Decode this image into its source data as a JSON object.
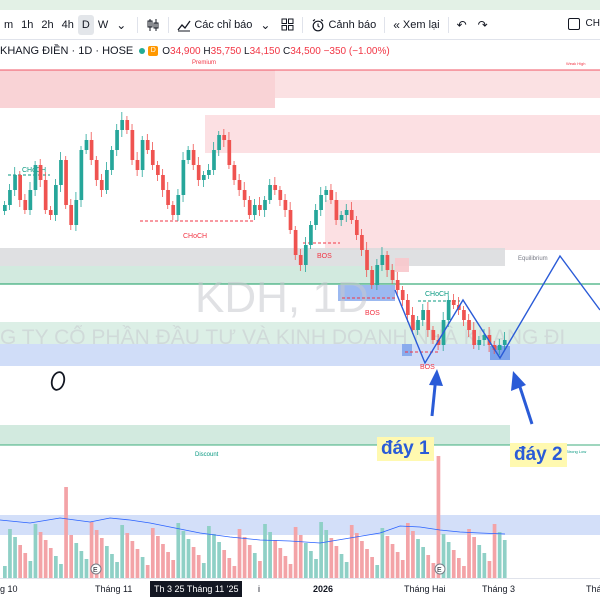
{
  "toolbar": {
    "intervals": [
      "m",
      "1h",
      "2h",
      "4h",
      "D",
      "W"
    ],
    "active_interval": "D",
    "indicators_label": "Các chỉ báo",
    "alert_label": "Cảnh báo",
    "replay_label": "Xem lại",
    "right_label": "CH"
  },
  "legend": {
    "title": "KHANG ĐIỀN · 1D · HOSE",
    "badge": "D",
    "open_label": "O",
    "open": "34,900",
    "high_label": "H",
    "high": "35,750",
    "low_label": "L",
    "low": "34,150",
    "close_label": "C",
    "close": "34,500",
    "change": "−350 (−1.00%)"
  },
  "labels": {
    "premium": "Premium",
    "weak_high": "Weak High",
    "equilibrium": "Equilibrium",
    "discount": "Discount",
    "strong_low": "Strong Low",
    "choch_1": "CHoCH",
    "choch_2": "CHoCH",
    "choch_3": "CHoCH",
    "bos_1": "BOS",
    "bos_2": "BOS",
    "bos_3": "BOS",
    "watermark": "KDH, 1D",
    "company_watermark": "G TY CỔ PHẦN ĐẦU TƯ VÀ KINH DOANH NHÀ KHANG ĐI"
  },
  "annotations": {
    "bottom_1": "đáy 1",
    "bottom_2": "đáy 2"
  },
  "time_axis": {
    "labels": [
      "g 10",
      "Tháng 11",
      "i",
      "2026",
      "Tháng Hai",
      "Tháng 3",
      "Thá"
    ],
    "cursor": "Th 3 25 Tháng 11 '25"
  },
  "colors": {
    "up": "#26a69a",
    "down": "#ef5350",
    "premium_zone": "#f8c8cc",
    "discount_zone": "#cde8dc",
    "blue_zone": "#a9bff0",
    "drawing": "#2a5bd7"
  },
  "icons": {
    "indicators": "chart-indicators-icon",
    "alert": "alarm-clock-icon",
    "replay": "rewind-icon",
    "undo": "undo-icon",
    "redo": "redo-icon",
    "compare": "plus-circle-icon",
    "layout": "layout-box-icon"
  }
}
